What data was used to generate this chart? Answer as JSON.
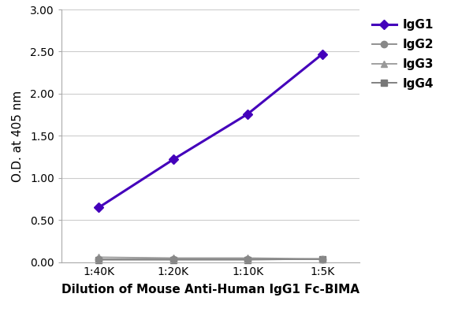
{
  "x_positions": [
    1,
    2,
    3,
    4
  ],
  "x_labels": [
    "1:40K",
    "1:20K",
    "1:10K",
    "1:5K"
  ],
  "series": [
    {
      "label": "IgG1",
      "y": [
        0.65,
        1.22,
        1.76,
        2.47
      ],
      "color": "#4400bb",
      "marker": "D",
      "marker_size": 6,
      "linewidth": 2.2,
      "zorder": 5
    },
    {
      "label": "IgG2",
      "y": [
        0.04,
        0.04,
        0.04,
        0.04
      ],
      "color": "#888888",
      "marker": "o",
      "marker_size": 6,
      "linewidth": 1.3,
      "zorder": 4
    },
    {
      "label": "IgG3",
      "y": [
        0.06,
        0.05,
        0.05,
        0.04
      ],
      "color": "#999999",
      "marker": "^",
      "marker_size": 6,
      "linewidth": 1.3,
      "zorder": 3
    },
    {
      "label": "IgG4",
      "y": [
        0.03,
        0.03,
        0.03,
        0.04
      ],
      "color": "#777777",
      "marker": "s",
      "marker_size": 6,
      "linewidth": 1.3,
      "zorder": 2
    }
  ],
  "ylim": [
    0.0,
    3.0
  ],
  "yticks": [
    0.0,
    0.5,
    1.0,
    1.5,
    2.0,
    2.5,
    3.0
  ],
  "ylabel": "O.D. at 405 nm",
  "xlabel": "Dilution of Mouse Anti-Human IgG1 Fc-BIMA",
  "background_color": "#ffffff",
  "outer_background": "#e8e8e8",
  "grid_color": "#cccccc",
  "spine_color": "#aaaaaa",
  "tick_label_fontsize": 10,
  "ylabel_fontsize": 11,
  "xlabel_fontsize": 11,
  "legend_fontsize": 11,
  "figure_width": 6.0,
  "figure_height": 4.01
}
